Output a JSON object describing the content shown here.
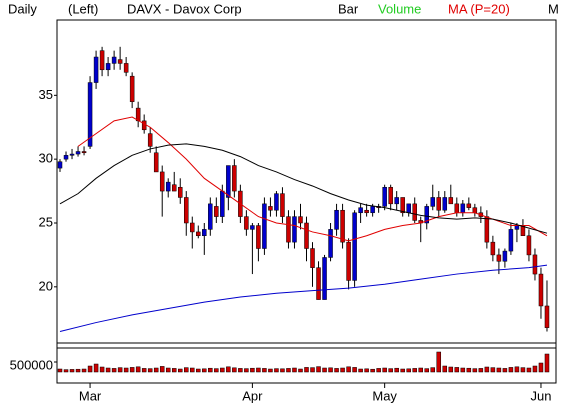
{
  "chart_data": {
    "type": "candlestick",
    "header": [
      "Daily",
      "(Left)",
      "DAVX - Davox Corp",
      "Bar",
      "M"
    ],
    "up_color": "#0000cc",
    "down_color": "#cc0000",
    "open": [
      29.3,
      30,
      30.3,
      30.4,
      30.6,
      31,
      36,
      38.5,
      37,
      37.5,
      37.8,
      37.5,
      36.5,
      34,
      33,
      32,
      30.5,
      29,
      27.5,
      28,
      27.8,
      27,
      25,
      24.3,
      24,
      24.5,
      26.3,
      25.5,
      27,
      29.5,
      27.5,
      25.5,
      24.5,
      24.8,
      23,
      26.3,
      26,
      27.3,
      25.5,
      23.5,
      25.5,
      25,
      23,
      21.5,
      19,
      22.3,
      24.5,
      26,
      23.5,
      20.5,
      25.8,
      26,
      25.8,
      26.3,
      26.3,
      27.8,
      26.5,
      27,
      25.8,
      26.5,
      25.2,
      25,
      26.3,
      27,
      26,
      27,
      26.5,
      25.8,
      26.5,
      26.2,
      25.8,
      25.5,
      23.5,
      22.5,
      22,
      22.8,
      24.5,
      24.8,
      24,
      22.5,
      21,
      18.5
    ],
    "high": [
      30,
      30.6,
      30.8,
      31,
      31,
      36.5,
      38.5,
      38.8,
      38,
      38.5,
      38.8,
      38,
      36.8,
      34.5,
      33.5,
      32.5,
      31,
      29.5,
      28.5,
      29,
      28.5,
      27.5,
      25.5,
      24.8,
      25,
      27,
      27,
      28,
      29.5,
      30,
      28,
      26,
      25,
      25,
      27,
      27,
      27.5,
      27.8,
      26,
      26,
      26.5,
      25.5,
      23.5,
      22,
      22.5,
      25,
      26.5,
      26.5,
      23.8,
      26,
      26.5,
      26.5,
      26.5,
      26.5,
      28,
      28,
      27.5,
      27,
      26.5,
      27,
      25.5,
      26.5,
      28,
      27.5,
      27.5,
      28,
      27,
      26.8,
      27,
      26.5,
      26.3,
      26,
      24,
      23,
      23,
      25,
      25,
      25.3,
      24.5,
      23,
      21.5,
      20.5
    ],
    "low": [
      29,
      29.8,
      30,
      30.2,
      30.3,
      30.8,
      35.5,
      36.5,
      36.5,
      37,
      37,
      36.5,
      34,
      32.5,
      32,
      30.5,
      29,
      25.5,
      27,
      27.5,
      26.5,
      24,
      23,
      23.8,
      22.5,
      24,
      25,
      25,
      26,
      27,
      25,
      24,
      21,
      22,
      22.5,
      25.5,
      25.5,
      25,
      23,
      23,
      24.5,
      22,
      20,
      19,
      19,
      22,
      24,
      23,
      19.8,
      20,
      25,
      25.5,
      25.5,
      25.8,
      26,
      26,
      26,
      25.5,
      25.5,
      25,
      23.5,
      24.5,
      26,
      25.5,
      25.8,
      26.5,
      25.5,
      25.5,
      26,
      25.5,
      25,
      23,
      22,
      21,
      21.5,
      22.5,
      23.5,
      24,
      22,
      20.5,
      17.5,
      16.5
    ],
    "close": [
      29.8,
      30.3,
      30.4,
      30.6,
      30.5,
      36,
      38,
      37,
      37.5,
      38,
      37.5,
      36.8,
      34.5,
      33,
      32.3,
      31,
      29,
      27.5,
      28.2,
      27.5,
      27,
      25,
      24.3,
      24,
      24.5,
      26.5,
      25.5,
      27.5,
      29.5,
      27.5,
      25.5,
      24.5,
      24.8,
      23,
      26.5,
      26,
      27.3,
      25.5,
      23.5,
      25.5,
      25,
      23,
      21.5,
      19,
      22.3,
      24.5,
      26,
      23.5,
      20.5,
      25.8,
      26.2,
      25.8,
      26.3,
      26.2,
      27.8,
      26.5,
      27,
      25.8,
      26.5,
      25.2,
      25,
      26.3,
      27,
      26,
      27,
      26.5,
      25.8,
      26.5,
      26.2,
      25.8,
      25.5,
      23.5,
      22.5,
      22,
      22.8,
      24.5,
      24.8,
      24,
      22.5,
      21,
      18.5,
      16.8
    ],
    "volume": {
      "name": "Volume",
      "color": "#cc0000",
      "values": [
        150000,
        120000,
        130000,
        140000,
        150000,
        300000,
        400000,
        250000,
        200000,
        180000,
        220000,
        200000,
        230000,
        260000,
        180000,
        170000,
        200000,
        280000,
        200000,
        180000,
        150000,
        220000,
        200000,
        150000,
        160000,
        190000,
        170000,
        200000,
        260000,
        210000,
        180000,
        170000,
        190000,
        200000,
        180000,
        150000,
        170000,
        160000,
        180000,
        200000,
        150000,
        230000,
        220000,
        270000,
        200000,
        210000,
        180000,
        200000,
        260000,
        230000,
        150000,
        160000,
        140000,
        180000,
        200000,
        170000,
        190000,
        150000,
        160000,
        180000,
        200000,
        170000,
        220000,
        1000000,
        300000,
        250000,
        230000,
        200000,
        190000,
        170000,
        180000,
        250000,
        220000,
        200000,
        180000,
        230000,
        260000,
        220000,
        200000,
        300000,
        450000,
        900000
      ],
      "ylim": [
        0,
        1200000
      ],
      "yticks": [
        500000
      ]
    },
    "series": [
      {
        "name": "MA (P=20)",
        "color": "#e00000",
        "x": [
          3,
          6,
          9,
          12,
          15,
          18,
          21,
          24,
          27,
          30,
          33,
          36,
          39,
          42,
          45,
          48,
          51,
          54,
          57,
          60,
          63,
          66,
          69,
          72,
          75,
          78,
          81
        ],
        "values": [
          31,
          32,
          33,
          33.3,
          32.5,
          31.3,
          30,
          28.5,
          27.5,
          26.5,
          25.5,
          25,
          24.8,
          24.3,
          24,
          23.6,
          24,
          24.5,
          24.8,
          25,
          25.5,
          25.8,
          25.8,
          25.3,
          24.8,
          24.8,
          24
        ]
      },
      {
        "color": "#000000",
        "x": [
          0,
          3,
          6,
          9,
          12,
          15,
          18,
          21,
          24,
          27,
          30,
          33,
          36,
          39,
          42,
          45,
          48,
          51,
          54,
          57,
          60,
          63,
          66,
          69,
          72,
          75,
          78,
          81
        ],
        "values": [
          26.5,
          27.3,
          28.5,
          29.5,
          30.3,
          30.8,
          31.1,
          31.2,
          31,
          30.7,
          30.2,
          29.5,
          29,
          28.4,
          27.9,
          27.3,
          26.8,
          26.4,
          26.2,
          25.9,
          25.6,
          25.4,
          25.3,
          25.4,
          25.3,
          25,
          24.6,
          24.2
        ]
      },
      {
        "color": "#0000cc",
        "x": [
          0,
          6,
          12,
          18,
          24,
          30,
          36,
          42,
          48,
          54,
          60,
          66,
          72,
          78,
          81
        ],
        "values": [
          16.5,
          17.2,
          17.8,
          18.3,
          18.8,
          19.2,
          19.5,
          19.7,
          19.9,
          20.2,
          20.6,
          21,
          21.3,
          21.5,
          21.7
        ]
      }
    ],
    "ylim": [
      15.6,
      40.9
    ],
    "yticks": [
      20,
      25,
      30,
      35
    ],
    "xlim": [
      -0.5,
      82.5
    ],
    "xticks": [
      {
        "value": 5,
        "label": "Mar"
      },
      {
        "value": 32,
        "label": "Apr"
      },
      {
        "value": 54,
        "label": "May"
      },
      {
        "value": 80,
        "label": "Jun"
      }
    ]
  }
}
